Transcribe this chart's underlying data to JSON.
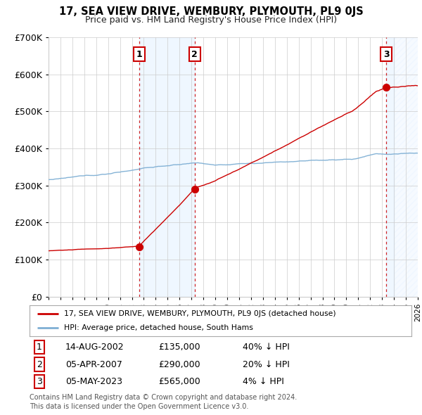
{
  "title": "17, SEA VIEW DRIVE, WEMBURY, PLYMOUTH, PL9 0JS",
  "subtitle": "Price paid vs. HM Land Registry's House Price Index (HPI)",
  "red_label": "17, SEA VIEW DRIVE, WEMBURY, PLYMOUTH, PL9 0JS (detached house)",
  "blue_label": "HPI: Average price, detached house, South Hams",
  "transactions": [
    {
      "num": 1,
      "year": 2002.62,
      "price": 135000,
      "label": "14-AUG-2002",
      "pct": "40% ↓ HPI"
    },
    {
      "num": 2,
      "year": 2007.27,
      "price": 290000,
      "label": "05-APR-2007",
      "pct": "20% ↓ HPI"
    },
    {
      "num": 3,
      "year": 2023.35,
      "price": 565000,
      "label": "05-MAY-2023",
      "pct": "4% ↓ HPI"
    }
  ],
  "ylim": [
    0,
    700000
  ],
  "xlim": [
    1995,
    2026
  ],
  "ylabel_ticks": [
    0,
    100000,
    200000,
    300000,
    400000,
    500000,
    600000,
    700000
  ],
  "ylabel_labels": [
    "£0",
    "£100K",
    "£200K",
    "£300K",
    "£400K",
    "£500K",
    "£600K",
    "£700K"
  ],
  "footer1": "Contains HM Land Registry data © Crown copyright and database right 2024.",
  "footer2": "This data is licensed under the Open Government Licence v3.0.",
  "bg_color": "#ffffff",
  "grid_color": "#cccccc",
  "red_color": "#cc0000",
  "blue_color": "#7eafd4",
  "vline_color": "#cc0000",
  "shade_color": "#ddeeff",
  "marker_box_color": "#cc0000",
  "shade_alpha": 0.45,
  "hatch_region_start": 2024.0,
  "hatch_region_end": 2026.5
}
